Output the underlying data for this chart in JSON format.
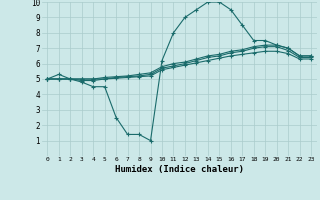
{
  "background_color": "#cce8e8",
  "grid_color": "#aacccc",
  "line_color": "#1a6b6b",
  "line1": {
    "x": [
      0,
      1,
      2,
      3,
      4,
      5,
      6,
      7,
      8,
      9,
      10,
      11,
      12,
      13,
      14,
      15,
      16,
      17,
      18,
      19,
      20,
      21,
      22,
      23
    ],
    "y": [
      5.0,
      5.3,
      5.0,
      4.8,
      4.5,
      4.5,
      2.5,
      1.4,
      1.4,
      1.0,
      6.2,
      8.0,
      9.0,
      9.5,
      10.0,
      10.0,
      9.5,
      8.5,
      7.5,
      7.5,
      7.2,
      7.0,
      6.5,
      6.5
    ]
  },
  "line2": {
    "x": [
      0,
      1,
      2,
      3,
      4,
      5,
      6,
      7,
      8,
      9,
      10,
      11,
      12,
      13,
      14,
      15,
      16,
      17,
      18,
      19,
      20,
      21,
      22,
      23
    ],
    "y": [
      5.0,
      5.0,
      5.0,
      5.0,
      5.0,
      5.1,
      5.15,
      5.2,
      5.3,
      5.4,
      5.8,
      6.0,
      6.1,
      6.3,
      6.5,
      6.6,
      6.8,
      6.9,
      7.1,
      7.2,
      7.2,
      7.0,
      6.5,
      6.5
    ]
  },
  "line3": {
    "x": [
      0,
      1,
      2,
      3,
      4,
      5,
      6,
      7,
      8,
      9,
      10,
      11,
      12,
      13,
      14,
      15,
      16,
      17,
      18,
      19,
      20,
      21,
      22,
      23
    ],
    "y": [
      5.0,
      5.0,
      5.0,
      4.9,
      4.9,
      5.0,
      5.1,
      5.15,
      5.2,
      5.3,
      5.7,
      5.85,
      6.0,
      6.2,
      6.4,
      6.5,
      6.7,
      6.8,
      7.0,
      7.1,
      7.1,
      6.85,
      6.4,
      6.4
    ]
  },
  "line4": {
    "x": [
      0,
      1,
      2,
      3,
      4,
      5,
      6,
      7,
      8,
      9,
      10,
      11,
      12,
      13,
      14,
      15,
      16,
      17,
      18,
      19,
      20,
      21,
      22,
      23
    ],
    "y": [
      5.0,
      5.0,
      5.0,
      5.0,
      5.0,
      5.0,
      5.05,
      5.1,
      5.15,
      5.2,
      5.6,
      5.75,
      5.9,
      6.05,
      6.2,
      6.35,
      6.5,
      6.6,
      6.7,
      6.8,
      6.8,
      6.65,
      6.3,
      6.3
    ]
  },
  "xlabel": "Humidex (Indice chaleur)",
  "xlim": [
    -0.5,
    23.5
  ],
  "ylim": [
    0,
    10
  ],
  "xticks": [
    0,
    1,
    2,
    3,
    4,
    5,
    6,
    7,
    8,
    9,
    10,
    11,
    12,
    13,
    14,
    15,
    16,
    17,
    18,
    19,
    20,
    21,
    22,
    23
  ],
  "yticks": [
    1,
    2,
    3,
    4,
    5,
    6,
    7,
    8,
    9,
    10
  ],
  "marker": "+",
  "markersize": 3,
  "linewidth": 0.8
}
